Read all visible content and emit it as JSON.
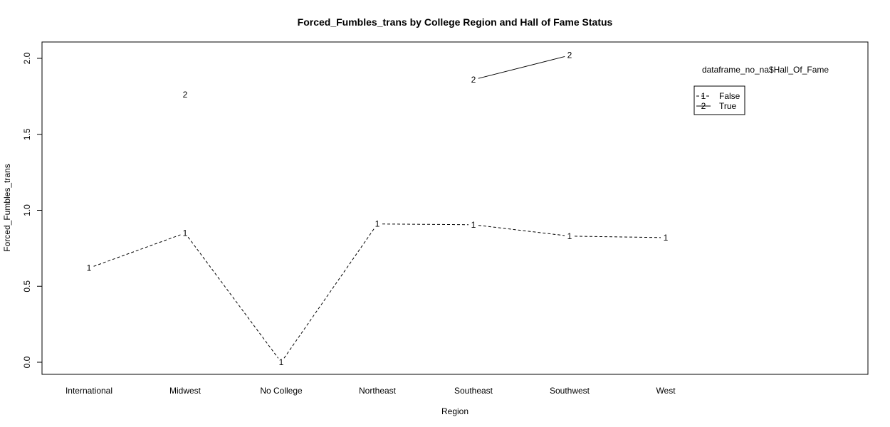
{
  "chart_data": {
    "type": "line",
    "title": "Forced_Fumbles_trans by College Region and Hall of Fame Status",
    "xlabel": "Region",
    "ylabel": "Forced_Fumbles_trans",
    "categories": [
      "International",
      "Midwest",
      "No College",
      "Northeast",
      "Southeast",
      "Southwest",
      "West"
    ],
    "ylim": [
      0,
      2
    ],
    "yticks": [
      "0.0",
      "0.5",
      "1.0",
      "1.5",
      "2.0"
    ],
    "grid": false,
    "legend_title": "dataframe_no_na$Hall_Of_Fame",
    "legend_position": "top-right",
    "series": [
      {
        "name": "False",
        "symbol": "1",
        "line_style": "dashed",
        "values": [
          0.62,
          0.85,
          0.0,
          0.91,
          0.905,
          0.83,
          0.82
        ]
      },
      {
        "name": "True",
        "symbol": "2",
        "line_style": "solid",
        "values": [
          null,
          1.76,
          null,
          null,
          1.86,
          2.02,
          null
        ]
      }
    ]
  }
}
